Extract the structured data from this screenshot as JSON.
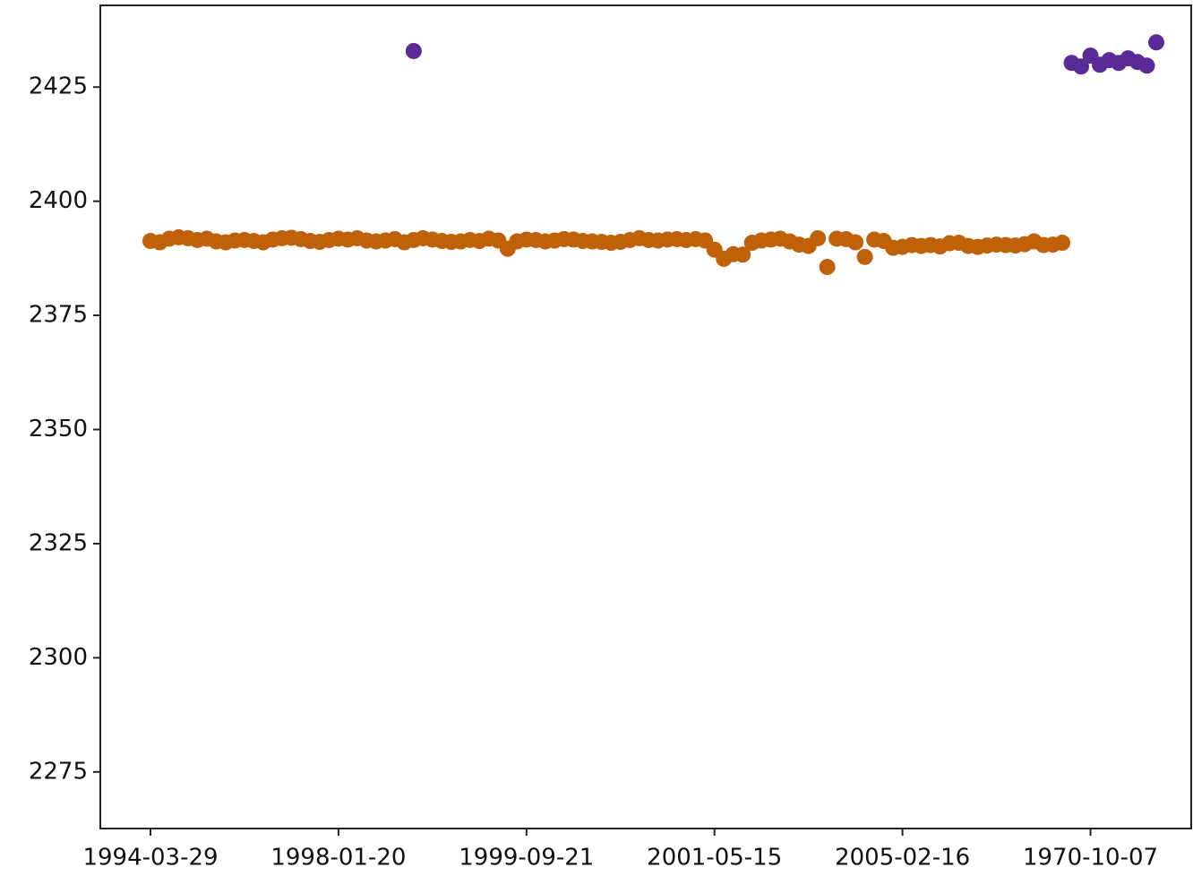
{
  "chart_data": {
    "type": "scatter",
    "categories": [
      "1994-03-29",
      null,
      null,
      null,
      null,
      null,
      null,
      null,
      null,
      null,
      null,
      null,
      null,
      null,
      null,
      null,
      null,
      null,
      null,
      null,
      "1998-01-20",
      null,
      null,
      null,
      null,
      null,
      null,
      null,
      null,
      null,
      null,
      null,
      null,
      null,
      null,
      null,
      null,
      null,
      null,
      null,
      "1999-09-21",
      null,
      null,
      null,
      null,
      null,
      null,
      null,
      null,
      null,
      null,
      null,
      null,
      null,
      null,
      null,
      null,
      null,
      null,
      null,
      "2001-05-15",
      null,
      null,
      null,
      null,
      null,
      null,
      null,
      null,
      null,
      null,
      null,
      null,
      null,
      null,
      null,
      null,
      null,
      null,
      null,
      "2005-02-16",
      null,
      null,
      null,
      null,
      null,
      null,
      null,
      null,
      null,
      null,
      null,
      null,
      null,
      null,
      null,
      null,
      null,
      null,
      null,
      "1970-10-07",
      null,
      null,
      null,
      null,
      null,
      null,
      null
    ],
    "series": [
      {
        "color": "#c0610a",
        "values": [
          2391.3,
          2391.0,
          2391.8,
          2392.1,
          2391.9,
          2391.5,
          2391.8,
          2391.2,
          2391.0,
          2391.4,
          2391.5,
          2391.3,
          2391.0,
          2391.6,
          2391.9,
          2392.0,
          2391.7,
          2391.3,
          2391.1,
          2391.5,
          2391.8,
          2391.6,
          2391.9,
          2391.4,
          2391.2,
          2391.4,
          2391.7,
          2391.0,
          2391.5,
          2391.9,
          2391.6,
          2391.3,
          2391.1,
          2391.2,
          2391.5,
          2391.3,
          2391.8,
          2391.4,
          2389.6,
          2391.2,
          2391.6,
          2391.5,
          2391.2,
          2391.4,
          2391.7,
          2391.6,
          2391.3,
          2391.2,
          2391.1,
          2390.9,
          2391.1,
          2391.5,
          2391.9,
          2391.5,
          2391.4,
          2391.6,
          2391.7,
          2391.5,
          2391.7,
          2391.4,
          2389.4,
          2387.4,
          2388.4,
          2388.3,
          2390.9,
          2391.4,
          2391.6,
          2391.8,
          2391.2,
          2390.5,
          2390.2,
          2391.9,
          2385.6,
          2391.8,
          2391.7,
          2391.0,
          2387.8,
          2391.6,
          2391.3,
          2389.8,
          2390.0,
          2390.4,
          2390.2,
          2390.4,
          2390.1,
          2390.8,
          2390.9,
          2390.2,
          2390.0,
          2390.3,
          2390.5,
          2390.4,
          2390.3,
          2390.6,
          2391.2,
          2390.4,
          2390.5,
          2390.9,
          null,
          null,
          null,
          null,
          null,
          null,
          null,
          null,
          null,
          null
        ]
      },
      {
        "color": "#5a2a96",
        "values": [
          null,
          null,
          null,
          null,
          null,
          null,
          null,
          null,
          null,
          null,
          null,
          null,
          null,
          null,
          null,
          null,
          null,
          null,
          null,
          null,
          null,
          null,
          null,
          null,
          null,
          null,
          null,
          null,
          2432.9,
          null,
          null,
          null,
          null,
          null,
          null,
          null,
          null,
          null,
          null,
          null,
          null,
          null,
          null,
          null,
          null,
          null,
          null,
          null,
          null,
          null,
          null,
          null,
          null,
          null,
          null,
          null,
          null,
          null,
          null,
          null,
          null,
          null,
          null,
          null,
          null,
          null,
          null,
          null,
          null,
          null,
          null,
          null,
          null,
          null,
          null,
          null,
          null,
          null,
          null,
          null,
          null,
          null,
          null,
          null,
          null,
          null,
          null,
          null,
          null,
          null,
          null,
          null,
          null,
          null,
          null,
          null,
          null,
          null,
          2430.3,
          2429.5,
          2431.9,
          2429.9,
          2430.9,
          2430.3,
          2431.3,
          2430.5,
          2429.7,
          2434.8
        ]
      }
    ],
    "ylim": [
      2262.6,
      2442.9
    ],
    "yticks": [
      2275,
      2300,
      2325,
      2350,
      2375,
      2400,
      2425
    ]
  }
}
